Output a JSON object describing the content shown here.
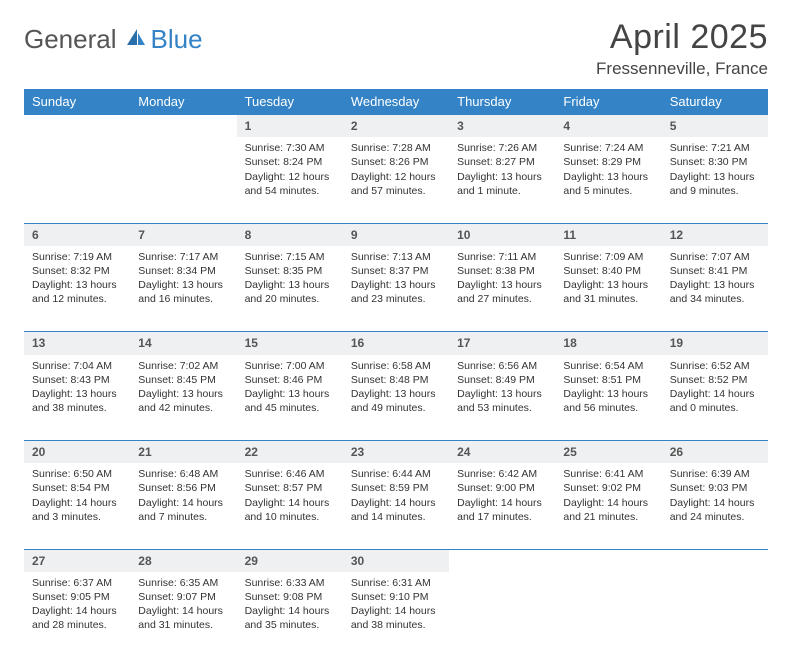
{
  "logo": {
    "part1": "General",
    "part2": "Blue"
  },
  "title": "April 2025",
  "location": "Fressenneville, France",
  "colors": {
    "header_blue": "#3383c6",
    "stripe_gray": "#eef0f2",
    "text": "#333333",
    "background": "#ffffff"
  },
  "day_headers": [
    "Sunday",
    "Monday",
    "Tuesday",
    "Wednesday",
    "Thursday",
    "Friday",
    "Saturday"
  ],
  "weeks": [
    [
      null,
      null,
      {
        "n": "1",
        "sr": "Sunrise: 7:30 AM",
        "ss": "Sunset: 8:24 PM",
        "dl1": "Daylight: 12 hours",
        "dl2": "and 54 minutes."
      },
      {
        "n": "2",
        "sr": "Sunrise: 7:28 AM",
        "ss": "Sunset: 8:26 PM",
        "dl1": "Daylight: 12 hours",
        "dl2": "and 57 minutes."
      },
      {
        "n": "3",
        "sr": "Sunrise: 7:26 AM",
        "ss": "Sunset: 8:27 PM",
        "dl1": "Daylight: 13 hours",
        "dl2": "and 1 minute."
      },
      {
        "n": "4",
        "sr": "Sunrise: 7:24 AM",
        "ss": "Sunset: 8:29 PM",
        "dl1": "Daylight: 13 hours",
        "dl2": "and 5 minutes."
      },
      {
        "n": "5",
        "sr": "Sunrise: 7:21 AM",
        "ss": "Sunset: 8:30 PM",
        "dl1": "Daylight: 13 hours",
        "dl2": "and 9 minutes."
      }
    ],
    [
      {
        "n": "6",
        "sr": "Sunrise: 7:19 AM",
        "ss": "Sunset: 8:32 PM",
        "dl1": "Daylight: 13 hours",
        "dl2": "and 12 minutes."
      },
      {
        "n": "7",
        "sr": "Sunrise: 7:17 AM",
        "ss": "Sunset: 8:34 PM",
        "dl1": "Daylight: 13 hours",
        "dl2": "and 16 minutes."
      },
      {
        "n": "8",
        "sr": "Sunrise: 7:15 AM",
        "ss": "Sunset: 8:35 PM",
        "dl1": "Daylight: 13 hours",
        "dl2": "and 20 minutes."
      },
      {
        "n": "9",
        "sr": "Sunrise: 7:13 AM",
        "ss": "Sunset: 8:37 PM",
        "dl1": "Daylight: 13 hours",
        "dl2": "and 23 minutes."
      },
      {
        "n": "10",
        "sr": "Sunrise: 7:11 AM",
        "ss": "Sunset: 8:38 PM",
        "dl1": "Daylight: 13 hours",
        "dl2": "and 27 minutes."
      },
      {
        "n": "11",
        "sr": "Sunrise: 7:09 AM",
        "ss": "Sunset: 8:40 PM",
        "dl1": "Daylight: 13 hours",
        "dl2": "and 31 minutes."
      },
      {
        "n": "12",
        "sr": "Sunrise: 7:07 AM",
        "ss": "Sunset: 8:41 PM",
        "dl1": "Daylight: 13 hours",
        "dl2": "and 34 minutes."
      }
    ],
    [
      {
        "n": "13",
        "sr": "Sunrise: 7:04 AM",
        "ss": "Sunset: 8:43 PM",
        "dl1": "Daylight: 13 hours",
        "dl2": "and 38 minutes."
      },
      {
        "n": "14",
        "sr": "Sunrise: 7:02 AM",
        "ss": "Sunset: 8:45 PM",
        "dl1": "Daylight: 13 hours",
        "dl2": "and 42 minutes."
      },
      {
        "n": "15",
        "sr": "Sunrise: 7:00 AM",
        "ss": "Sunset: 8:46 PM",
        "dl1": "Daylight: 13 hours",
        "dl2": "and 45 minutes."
      },
      {
        "n": "16",
        "sr": "Sunrise: 6:58 AM",
        "ss": "Sunset: 8:48 PM",
        "dl1": "Daylight: 13 hours",
        "dl2": "and 49 minutes."
      },
      {
        "n": "17",
        "sr": "Sunrise: 6:56 AM",
        "ss": "Sunset: 8:49 PM",
        "dl1": "Daylight: 13 hours",
        "dl2": "and 53 minutes."
      },
      {
        "n": "18",
        "sr": "Sunrise: 6:54 AM",
        "ss": "Sunset: 8:51 PM",
        "dl1": "Daylight: 13 hours",
        "dl2": "and 56 minutes."
      },
      {
        "n": "19",
        "sr": "Sunrise: 6:52 AM",
        "ss": "Sunset: 8:52 PM",
        "dl1": "Daylight: 14 hours",
        "dl2": "and 0 minutes."
      }
    ],
    [
      {
        "n": "20",
        "sr": "Sunrise: 6:50 AM",
        "ss": "Sunset: 8:54 PM",
        "dl1": "Daylight: 14 hours",
        "dl2": "and 3 minutes."
      },
      {
        "n": "21",
        "sr": "Sunrise: 6:48 AM",
        "ss": "Sunset: 8:56 PM",
        "dl1": "Daylight: 14 hours",
        "dl2": "and 7 minutes."
      },
      {
        "n": "22",
        "sr": "Sunrise: 6:46 AM",
        "ss": "Sunset: 8:57 PM",
        "dl1": "Daylight: 14 hours",
        "dl2": "and 10 minutes."
      },
      {
        "n": "23",
        "sr": "Sunrise: 6:44 AM",
        "ss": "Sunset: 8:59 PM",
        "dl1": "Daylight: 14 hours",
        "dl2": "and 14 minutes."
      },
      {
        "n": "24",
        "sr": "Sunrise: 6:42 AM",
        "ss": "Sunset: 9:00 PM",
        "dl1": "Daylight: 14 hours",
        "dl2": "and 17 minutes."
      },
      {
        "n": "25",
        "sr": "Sunrise: 6:41 AM",
        "ss": "Sunset: 9:02 PM",
        "dl1": "Daylight: 14 hours",
        "dl2": "and 21 minutes."
      },
      {
        "n": "26",
        "sr": "Sunrise: 6:39 AM",
        "ss": "Sunset: 9:03 PM",
        "dl1": "Daylight: 14 hours",
        "dl2": "and 24 minutes."
      }
    ],
    [
      {
        "n": "27",
        "sr": "Sunrise: 6:37 AM",
        "ss": "Sunset: 9:05 PM",
        "dl1": "Daylight: 14 hours",
        "dl2": "and 28 minutes."
      },
      {
        "n": "28",
        "sr": "Sunrise: 6:35 AM",
        "ss": "Sunset: 9:07 PM",
        "dl1": "Daylight: 14 hours",
        "dl2": "and 31 minutes."
      },
      {
        "n": "29",
        "sr": "Sunrise: 6:33 AM",
        "ss": "Sunset: 9:08 PM",
        "dl1": "Daylight: 14 hours",
        "dl2": "and 35 minutes."
      },
      {
        "n": "30",
        "sr": "Sunrise: 6:31 AM",
        "ss": "Sunset: 9:10 PM",
        "dl1": "Daylight: 14 hours",
        "dl2": "and 38 minutes."
      },
      null,
      null,
      null
    ]
  ]
}
